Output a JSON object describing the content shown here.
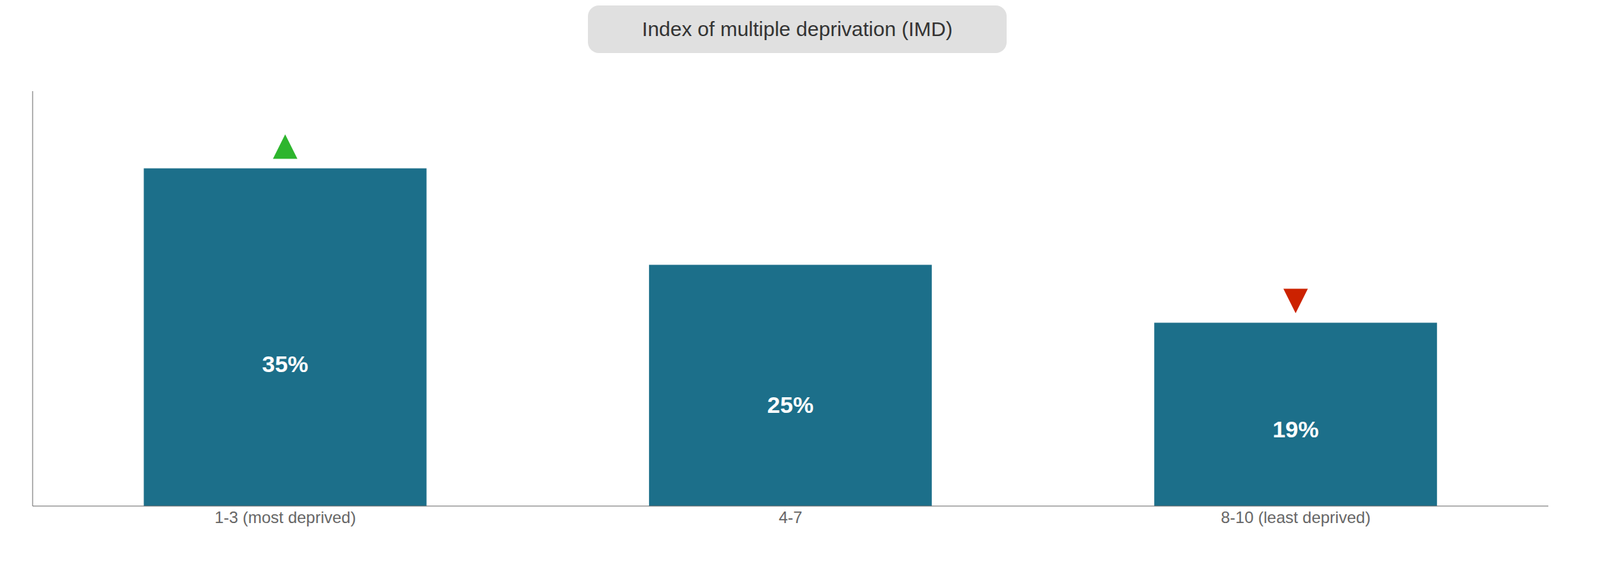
{
  "chart_data": {
    "type": "bar",
    "title": "Index of multiple deprivation (IMD)",
    "categories": [
      "1-3 (most deprived)",
      "4-7",
      "8-10 (least deprived)"
    ],
    "values": [
      35,
      25,
      19
    ],
    "value_labels": [
      "35%",
      "25%",
      "19%"
    ],
    "data_labels": true,
    "color": "#1c6f8a",
    "ylim": [
      0,
      43
    ],
    "tick_labels": "x",
    "grid": false,
    "markers": [
      {
        "category": "1-3 (most deprived)",
        "marker": "triangle-up",
        "color": "#2db52d"
      },
      {
        "category": "8-10 (least deprived)",
        "marker": "triangle-down",
        "color": "#cc2200"
      }
    ]
  }
}
